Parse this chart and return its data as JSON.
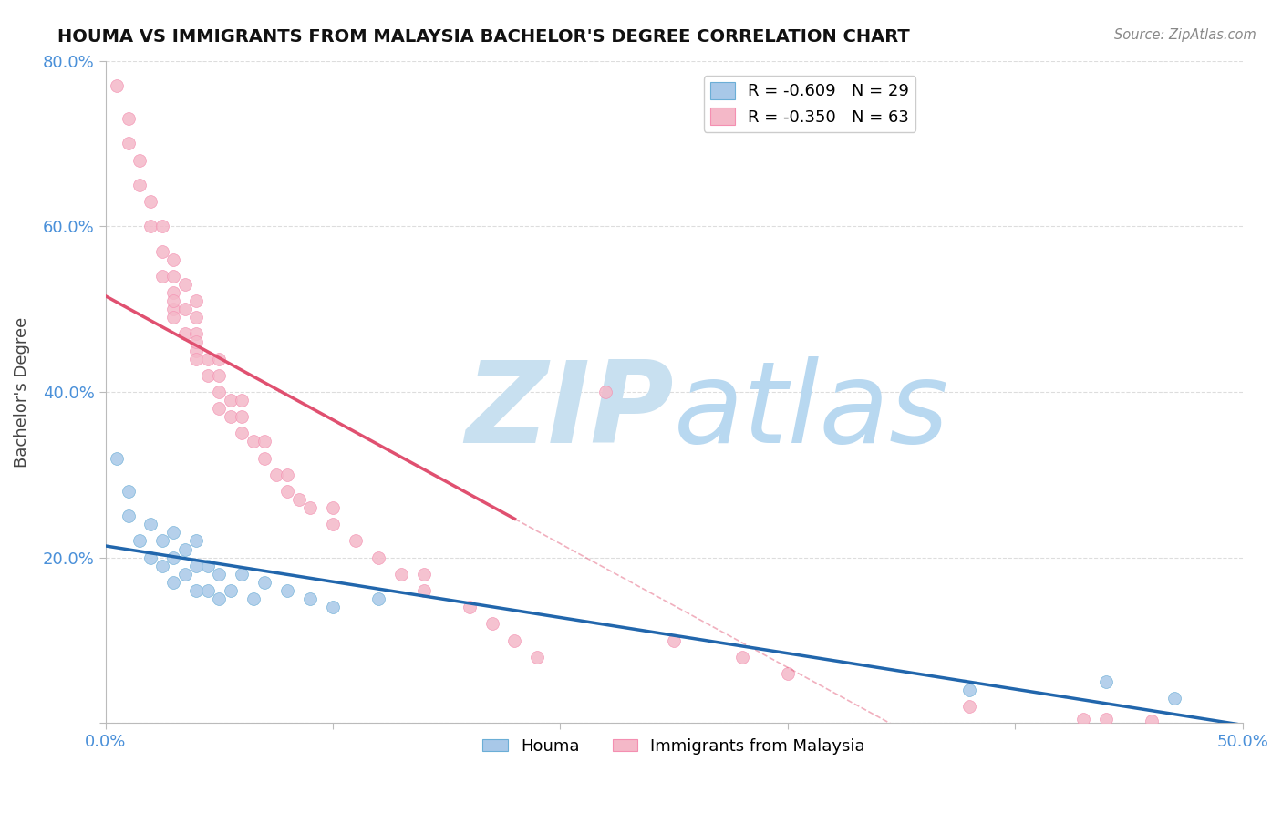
{
  "title": "HOUMA VS IMMIGRANTS FROM MALAYSIA BACHELOR'S DEGREE CORRELATION CHART",
  "source": "Source: ZipAtlas.com",
  "ylabel": "Bachelor's Degree",
  "xlim": [
    0.0,
    0.5
  ],
  "ylim": [
    0.0,
    0.8
  ],
  "houma_x": [
    0.005,
    0.01,
    0.01,
    0.015,
    0.02,
    0.02,
    0.025,
    0.025,
    0.03,
    0.03,
    0.03,
    0.035,
    0.035,
    0.04,
    0.04,
    0.04,
    0.045,
    0.045,
    0.05,
    0.05,
    0.055,
    0.06,
    0.065,
    0.07,
    0.08,
    0.09,
    0.1,
    0.12,
    0.38,
    0.44,
    0.47
  ],
  "houma_y": [
    0.32,
    0.25,
    0.28,
    0.22,
    0.2,
    0.24,
    0.19,
    0.22,
    0.17,
    0.2,
    0.23,
    0.18,
    0.21,
    0.16,
    0.19,
    0.22,
    0.16,
    0.19,
    0.15,
    0.18,
    0.16,
    0.18,
    0.15,
    0.17,
    0.16,
    0.15,
    0.14,
    0.15,
    0.04,
    0.05,
    0.03
  ],
  "malaysia_x": [
    0.005,
    0.01,
    0.01,
    0.015,
    0.015,
    0.02,
    0.02,
    0.025,
    0.025,
    0.025,
    0.03,
    0.03,
    0.03,
    0.03,
    0.03,
    0.03,
    0.035,
    0.035,
    0.035,
    0.04,
    0.04,
    0.04,
    0.04,
    0.04,
    0.04,
    0.045,
    0.045,
    0.05,
    0.05,
    0.05,
    0.05,
    0.055,
    0.055,
    0.06,
    0.06,
    0.06,
    0.065,
    0.07,
    0.07,
    0.075,
    0.08,
    0.08,
    0.085,
    0.09,
    0.1,
    0.1,
    0.11,
    0.12,
    0.13,
    0.14,
    0.14,
    0.16,
    0.17,
    0.18,
    0.19,
    0.22,
    0.25,
    0.28,
    0.3,
    0.38,
    0.43,
    0.44,
    0.46
  ],
  "malaysia_y": [
    0.77,
    0.7,
    0.73,
    0.65,
    0.68,
    0.6,
    0.63,
    0.54,
    0.57,
    0.6,
    0.5,
    0.52,
    0.54,
    0.56,
    0.49,
    0.51,
    0.47,
    0.5,
    0.53,
    0.45,
    0.47,
    0.49,
    0.51,
    0.44,
    0.46,
    0.42,
    0.44,
    0.4,
    0.42,
    0.44,
    0.38,
    0.37,
    0.39,
    0.35,
    0.37,
    0.39,
    0.34,
    0.32,
    0.34,
    0.3,
    0.28,
    0.3,
    0.27,
    0.26,
    0.24,
    0.26,
    0.22,
    0.2,
    0.18,
    0.16,
    0.18,
    0.14,
    0.12,
    0.1,
    0.08,
    0.4,
    0.1,
    0.08,
    0.06,
    0.02,
    0.005,
    0.005,
    0.003
  ],
  "houma_color": "#a8c8e8",
  "houma_edge_color": "#6baed6",
  "malaysia_color": "#f4b8c8",
  "malaysia_edge_color": "#f48fb1",
  "houma_line_color": "#2166ac",
  "malaysia_line_color": "#e05070",
  "malaysia_line_solid_end": 0.18,
  "background_color": "#ffffff",
  "grid_color": "#dddddd",
  "watermark_color": "#c8e0f0",
  "watermark_zip": "ZIP",
  "watermark_atlas": "atlas"
}
